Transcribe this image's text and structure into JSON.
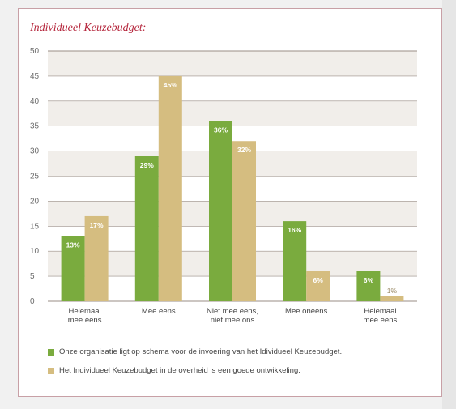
{
  "page": {
    "title": "Individueel Keuzebudget:"
  },
  "chart_data": {
    "type": "bar",
    "title": "Individueel Keuzebudget:",
    "categories": [
      [
        "Helemaal",
        "mee eens"
      ],
      [
        "Mee eens"
      ],
      [
        "Niet mee eens,",
        "niet mee ons"
      ],
      [
        "Mee oneens"
      ],
      [
        "Helemaal",
        "mee eens"
      ]
    ],
    "series": [
      {
        "name": "Onze organisatie ligt op schema voor de invoering van het Idividueel Keuzebudget.",
        "color": "#7aab3e",
        "values": [
          13,
          29,
          36,
          16,
          6
        ],
        "labels": [
          "13%",
          "29%",
          "36%",
          "16%",
          "6%"
        ]
      },
      {
        "name": "Het Individueel Keuzebudget in de overheid is een goede ontwikkeling.",
        "color": "#d5bd80",
        "values": [
          17,
          45,
          32,
          6,
          1
        ],
        "labels": [
          "17%",
          "45%",
          "32%",
          "6%",
          "1%"
        ]
      }
    ],
    "yticks": [
      "0",
      "5",
      "10",
      "15",
      "20",
      "25",
      "30",
      "35",
      "40",
      "45",
      "50"
    ],
    "ylim": [
      0,
      50
    ],
    "band_color": "#f1eeea",
    "gridline_color": "#9a8e86"
  }
}
